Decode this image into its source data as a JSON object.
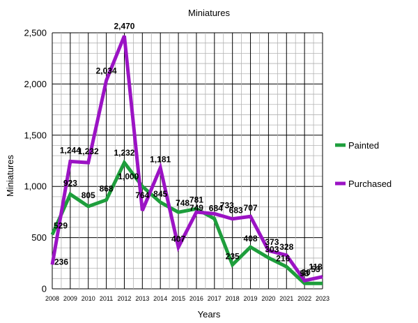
{
  "chart_data": {
    "type": "line",
    "title": "Miniatures",
    "xlabel": "Years",
    "ylabel": "Miniatures",
    "ylim": [
      0,
      2500
    ],
    "yticks": [
      0,
      500,
      1000,
      1500,
      2000,
      2500
    ],
    "ytick_labels": [
      "0",
      "500",
      "1,000",
      "1,500",
      "2,000",
      "2,500"
    ],
    "categories": [
      "2008",
      "2009",
      "2010",
      "2011",
      "2012",
      "2013",
      "2014",
      "2015",
      "2016",
      "2017",
      "2018",
      "2019",
      "2020",
      "2021",
      "2022",
      "2023"
    ],
    "legend_position": "right",
    "series": [
      {
        "name": "Painted",
        "color": "#1e9e3c",
        "values": [
          529,
          923,
          805,
          868,
          1232,
          1000,
          845,
          748,
          781,
          684,
          235,
          408,
          303,
          216,
          53,
          53
        ],
        "labels": [
          "529",
          "923",
          "805",
          "868",
          "1,232",
          "1,000",
          "845",
          "748",
          "781",
          "684",
          "235",
          "408",
          "303",
          "216",
          "53",
          "53"
        ]
      },
      {
        "name": "Purchased",
        "color": "#9b13c4",
        "values": [
          236,
          1244,
          1232,
          2034,
          2470,
          764,
          1181,
          407,
          749,
          733,
          683,
          707,
          373,
          328,
          80,
          118
        ],
        "labels": [
          "236",
          "1,244",
          "1,232",
          "2,034",
          "2,470",
          "764",
          "1,181",
          "407",
          "749",
          "733",
          "683",
          "707",
          "373",
          "328",
          "80",
          "118"
        ]
      }
    ]
  }
}
